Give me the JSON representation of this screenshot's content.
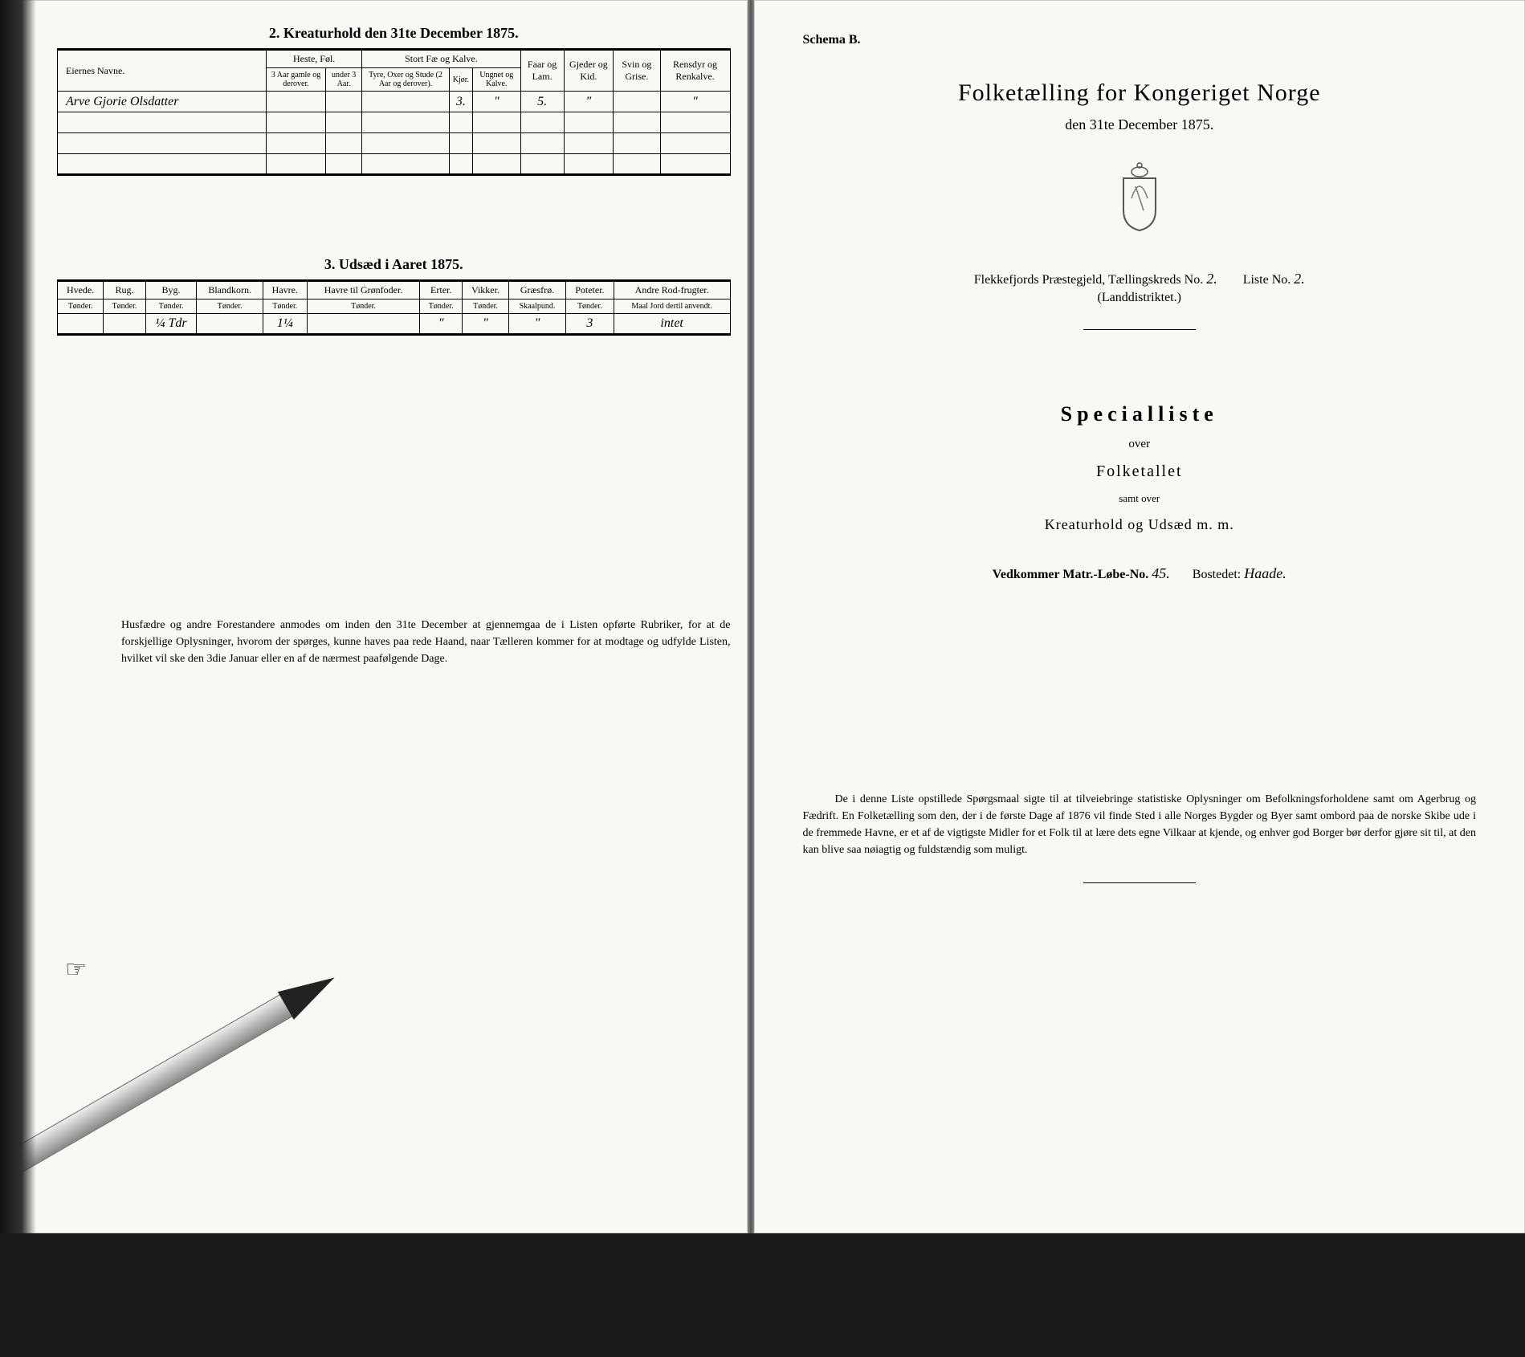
{
  "left": {
    "section2_title": "2. Kreaturhold den 31te December 1875.",
    "table2": {
      "headers": {
        "owner": "Eiernes Navne.",
        "horses": "Heste, Føl.",
        "horses_sub1": "3 Aar gamle og derover.",
        "horses_sub2": "under 3 Aar.",
        "cattle": "Stort Fæ og Kalve.",
        "cattle_sub1": "Tyre, Oxer og Stude (2 Aar og derover).",
        "cattle_sub2": "Kjør.",
        "cattle_sub3": "Ungnet og Kalve.",
        "sheep": "Faar og Lam.",
        "goats": "Gjeder og Kid.",
        "pigs": "Svin og Grise.",
        "reindeer": "Rensdyr og Renkalve."
      },
      "rows": [
        {
          "owner": "Arve Gjorie Olsdatter",
          "h1": "",
          "h2": "",
          "c1": "",
          "c2": "3.",
          "c3": "\"",
          "sheep": "5.",
          "goats": "\"",
          "pigs": "",
          "reindeer": "\""
        },
        {
          "owner": "",
          "h1": "",
          "h2": "",
          "c1": "",
          "c2": "",
          "c3": "",
          "sheep": "",
          "goats": "",
          "pigs": "",
          "reindeer": ""
        },
        {
          "owner": "",
          "h1": "",
          "h2": "",
          "c1": "",
          "c2": "",
          "c3": "",
          "sheep": "",
          "goats": "",
          "pigs": "",
          "reindeer": ""
        },
        {
          "owner": "",
          "h1": "",
          "h2": "",
          "c1": "",
          "c2": "",
          "c3": "",
          "sheep": "",
          "goats": "",
          "pigs": "",
          "reindeer": ""
        }
      ]
    },
    "section3_title": "3. Udsæd i Aaret 1875.",
    "table3": {
      "headers": [
        "Hvede.",
        "Rug.",
        "Byg.",
        "Blandkorn.",
        "Havre.",
        "Havre til Grønfoder.",
        "Erter.",
        "Vikker.",
        "Græsfrø.",
        "Poteter.",
        "Andre Rod-frugter."
      ],
      "units": [
        "Tønder.",
        "Tønder.",
        "Tønder.",
        "Tønder.",
        "Tønder.",
        "Tønder.",
        "Tønder.",
        "Tønder.",
        "Skaalpund.",
        "Tønder.",
        "Maal Jord dertil anvendt."
      ],
      "row": [
        "",
        "",
        "¼ Tdr",
        "",
        "1¼",
        "",
        "\"",
        "\"",
        "\"",
        "3",
        "intet"
      ]
    },
    "bottom_note": "Husfædre og andre Forestandere anmodes om inden den 31te December at gjennemgaa de i Listen opførte Rubriker, for at de forskjellige Oplysninger, hvorom der spørges, kunne haves paa rede Haand, naar Tælleren kommer for at modtage og udfylde Listen, hvilket vil ske den 3die Januar eller en af de nærmest paafølgende Dage."
  },
  "right": {
    "schema": "Schema B.",
    "main_title": "Folketælling for Kongeriget Norge",
    "sub_date": "den 31te December 1875.",
    "district_line1_a": "Flekkefjords Præstegjeld, Tællingskreds No.",
    "district_kreds_no": "2.",
    "district_liste_label": "Liste No.",
    "district_liste_no": "2.",
    "district_line2": "(Landdistriktet.)",
    "spec_title": "Specialliste",
    "spec_over": "over",
    "spec_folk": "Folketallet",
    "spec_samt": "samt over",
    "spec_kreatur": "Kreaturhold og Udsæd m. m.",
    "vedk_label": "Vedkommer Matr.-Løbe-No.",
    "vedk_no": "45.",
    "bosted_label": "Bostedet:",
    "bosted_val": "Haade.",
    "bottom_para": "De i denne Liste opstillede Spørgsmaal sigte til at tilveiebringe statistiske Oplysninger om Befolkningsforholdene samt om Agerbrug og Fædrift. En Folketælling som den, der i de første Dage af 1876 vil finde Sted i alle Norges Bygder og Byer samt ombord paa de norske Skibe ude i de fremmede Havne, er et af de vigtigste Midler for et Folk til at lære dets egne Vilkaar at kjende, og enhver god Borger bør derfor gjøre sit til, at den kan blive saa nøiagtig og fuldstændig som muligt."
  },
  "colors": {
    "paper": "#f8f8f4",
    "ink": "#000000",
    "background": "#1a1a1a"
  }
}
